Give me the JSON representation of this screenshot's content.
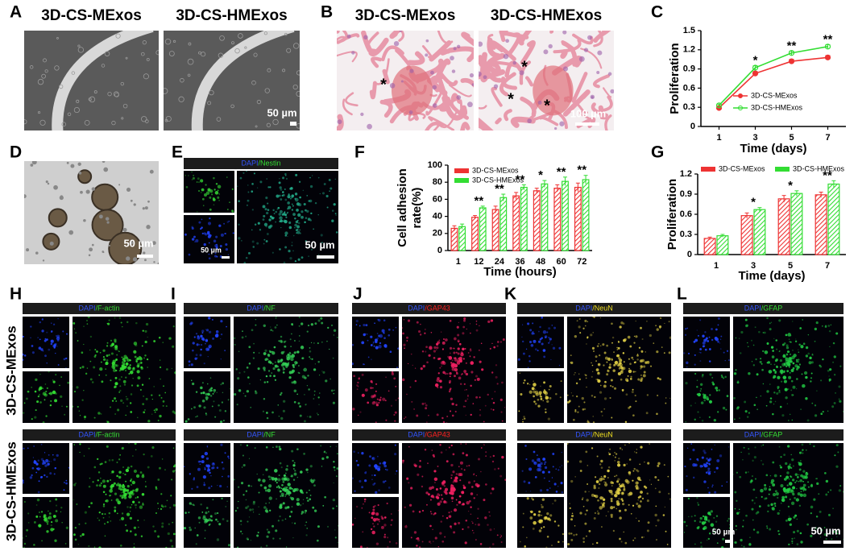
{
  "figure": {
    "panel_labels": [
      "A",
      "B",
      "C",
      "D",
      "E",
      "F",
      "G",
      "H",
      "I",
      "J",
      "K",
      "L"
    ],
    "A": {
      "titles": [
        "3D-CS-MExos",
        "3D-CS-HMExos"
      ],
      "scale_bar": "50 µm"
    },
    "B": {
      "titles": [
        "3D-CS-MExos",
        "3D-CS-HMExos"
      ],
      "asterisks": [
        "*",
        "*",
        "*",
        "*"
      ],
      "scale_bar": "100 µm"
    },
    "D": {
      "scale_bar": "50 µm"
    },
    "E": {
      "stain": [
        "DAPI",
        "/Nestin"
      ],
      "scale_bars": [
        "50 µm",
        "50 µm"
      ]
    },
    "row_labels": [
      "3D-CS-MExos",
      "3D-CS-HMExos"
    ],
    "stain_panels": [
      {
        "stains": [
          [
            "DAPI",
            "/F-actin"
          ],
          [
            "DAPI",
            "/F-actin"
          ]
        ]
      },
      {
        "stains": [
          [
            "DAPI",
            "/NF"
          ],
          [
            "DAPI",
            "/NF"
          ]
        ]
      },
      {
        "stains": [
          [
            "DAPI",
            "/GAP43"
          ],
          [
            "DAPI",
            "/GAP43"
          ]
        ]
      },
      {
        "stains": [
          [
            "DAPI",
            "/NeuN"
          ],
          [
            "DAPI",
            "/NeuN"
          ]
        ]
      },
      {
        "stains": [
          [
            "DAPI",
            "/GFAP"
          ],
          [
            "DAPI",
            "/GFAP"
          ]
        ],
        "scale_bars": [
          "50 µm",
          "50 µm"
        ]
      }
    ]
  },
  "chart_data": [
    {
      "type": "line",
      "xlabel": "Time (days)",
      "ylabel": "Proliferation",
      "x": [
        1,
        3,
        5,
        7
      ],
      "xlim": [
        0,
        8
      ],
      "xticks": [
        1,
        3,
        5,
        7
      ],
      "ylim": [
        0,
        1.5
      ],
      "yticks": [
        0,
        0.3,
        0.6,
        0.9,
        1.2,
        1.5
      ],
      "legend": "lower right",
      "series": [
        {
          "name": "3D-CS-MExos",
          "color": "#ee3333",
          "values": [
            0.29,
            0.83,
            1.02,
            1.08
          ],
          "errors": [
            0.02,
            0.03,
            0.03,
            0.03
          ]
        },
        {
          "name": "3D-CS-HMExos",
          "color": "#33dd33",
          "values": [
            0.33,
            0.92,
            1.15,
            1.25
          ],
          "errors": [
            0.02,
            0.03,
            0.03,
            0.03
          ]
        }
      ],
      "significance": [
        null,
        "*",
        "**",
        "**"
      ]
    },
    {
      "type": "bar",
      "xlabel": "Time (hours)",
      "ylabel": [
        "Cell adhesion",
        "rate(%)"
      ],
      "categories": [
        "1",
        "12",
        "24",
        "36",
        "48",
        "60",
        "72"
      ],
      "ylim": [
        0,
        100
      ],
      "yticks": [
        0,
        20,
        40,
        60,
        80,
        100
      ],
      "legend": "upper left",
      "series": [
        {
          "name": "3D-CS-MExos",
          "color": "#ee3333",
          "values": [
            26,
            39,
            48,
            64,
            70,
            73,
            74
          ],
          "errors": [
            3,
            2,
            4,
            4,
            3,
            4,
            5
          ]
        },
        {
          "name": "3D-CS-HMExos",
          "color": "#33dd33",
          "values": [
            28,
            50,
            62,
            74,
            78,
            81,
            83
          ],
          "errors": [
            3,
            2,
            4,
            3,
            4,
            5,
            5
          ]
        }
      ],
      "significance": [
        null,
        "**",
        "**",
        "**",
        "*",
        "**",
        "**"
      ]
    },
    {
      "type": "bar",
      "xlabel": "Time (days)",
      "ylabel": "Proliferation",
      "categories": [
        "1",
        "3",
        "5",
        "7"
      ],
      "ylim": [
        0,
        1.2
      ],
      "yticks": [
        0,
        0.3,
        0.6,
        0.9,
        1.2
      ],
      "legend": "top",
      "series": [
        {
          "name": "3D-CS-MExos",
          "color": "#ee3333",
          "values": [
            0.24,
            0.58,
            0.83,
            0.89
          ],
          "errors": [
            0.02,
            0.04,
            0.05,
            0.04
          ]
        },
        {
          "name": "3D-CS-HMExos",
          "color": "#33dd33",
          "values": [
            0.28,
            0.67,
            0.91,
            1.05
          ],
          "errors": [
            0.02,
            0.03,
            0.04,
            0.05
          ]
        }
      ],
      "significance": [
        null,
        "*",
        "*",
        "**"
      ]
    }
  ]
}
